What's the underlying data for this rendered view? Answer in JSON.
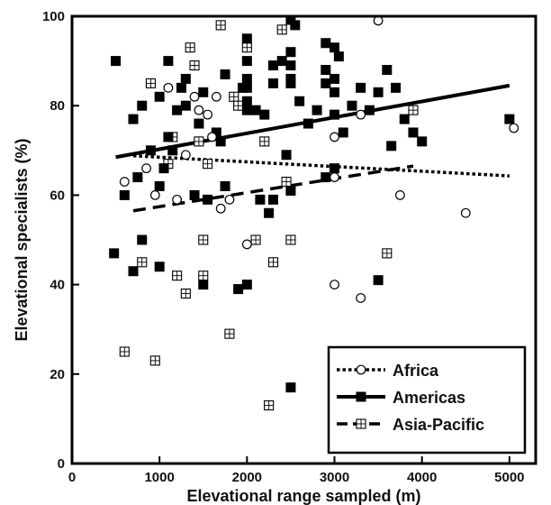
{
  "chart_data": {
    "type": "scatter",
    "title": "",
    "xlabel": "Elevational range sampled (m)",
    "ylabel": "Elevational specialists (%)",
    "xlim": [
      0,
      5300
    ],
    "ylim": [
      0,
      100
    ],
    "xticks": [
      0,
      1000,
      2000,
      3000,
      4000,
      5000
    ],
    "yticks": [
      0,
      20,
      40,
      60,
      80,
      100
    ],
    "grid": false,
    "legend_position": "bottom-right",
    "series": [
      {
        "name": "Africa",
        "marker": "open-circle",
        "line_style": "dotted",
        "color": "#000000",
        "points": [
          [
            600,
            63
          ],
          [
            850,
            66
          ],
          [
            950,
            60
          ],
          [
            1100,
            84
          ],
          [
            1200,
            59
          ],
          [
            1300,
            69
          ],
          [
            1400,
            82
          ],
          [
            1450,
            79
          ],
          [
            1550,
            78
          ],
          [
            1600,
            73
          ],
          [
            1650,
            82
          ],
          [
            1700,
            57
          ],
          [
            1800,
            59
          ],
          [
            2000,
            49
          ],
          [
            3000,
            40
          ],
          [
            3000,
            73
          ],
          [
            3000,
            64
          ],
          [
            3300,
            37
          ],
          [
            3300,
            78
          ],
          [
            3500,
            99
          ],
          [
            3750,
            60
          ],
          [
            4500,
            56
          ],
          [
            5050,
            75
          ]
        ],
        "trend": [
          [
            700,
            68.8
          ],
          [
            5000,
            64.3
          ]
        ]
      },
      {
        "name": "Americas",
        "marker": "filled-square",
        "line_style": "solid",
        "color": "#000000",
        "points": [
          [
            480,
            47
          ],
          [
            500,
            90
          ],
          [
            600,
            60
          ],
          [
            700,
            43
          ],
          [
            700,
            77
          ],
          [
            750,
            64
          ],
          [
            800,
            80
          ],
          [
            800,
            50
          ],
          [
            900,
            70
          ],
          [
            1000,
            44
          ],
          [
            1000,
            62
          ],
          [
            1000,
            82
          ],
          [
            1050,
            66
          ],
          [
            1100,
            73
          ],
          [
            1100,
            90
          ],
          [
            1150,
            70
          ],
          [
            1200,
            79
          ],
          [
            1250,
            84
          ],
          [
            1300,
            86
          ],
          [
            1300,
            80
          ],
          [
            1400,
            60
          ],
          [
            1450,
            76
          ],
          [
            1500,
            83
          ],
          [
            1500,
            40
          ],
          [
            1550,
            59
          ],
          [
            1650,
            74
          ],
          [
            1700,
            72
          ],
          [
            1750,
            62
          ],
          [
            1750,
            87
          ],
          [
            1900,
            39
          ],
          [
            1950,
            84
          ],
          [
            2000,
            95
          ],
          [
            2000,
            90
          ],
          [
            2000,
            86
          ],
          [
            2000,
            84
          ],
          [
            2000,
            81
          ],
          [
            2000,
            79
          ],
          [
            2000,
            40
          ],
          [
            2100,
            79
          ],
          [
            2150,
            59
          ],
          [
            2200,
            78
          ],
          [
            2250,
            56
          ],
          [
            2300,
            89
          ],
          [
            2300,
            85
          ],
          [
            2300,
            59
          ],
          [
            2400,
            90
          ],
          [
            2450,
            69
          ],
          [
            2500,
            100
          ],
          [
            2500,
            92
          ],
          [
            2500,
            89
          ],
          [
            2500,
            86
          ],
          [
            2500,
            85
          ],
          [
            2500,
            61
          ],
          [
            2500,
            17
          ],
          [
            2550,
            98
          ],
          [
            2600,
            81
          ],
          [
            2700,
            76
          ],
          [
            2800,
            79
          ],
          [
            2900,
            94
          ],
          [
            2900,
            88
          ],
          [
            2900,
            85
          ],
          [
            2900,
            64
          ],
          [
            3000,
            93
          ],
          [
            3000,
            86
          ],
          [
            3000,
            83
          ],
          [
            3000,
            78
          ],
          [
            3000,
            66
          ],
          [
            3050,
            91
          ],
          [
            3100,
            74
          ],
          [
            3200,
            80
          ],
          [
            3300,
            84
          ],
          [
            3400,
            79
          ],
          [
            3500,
            83
          ],
          [
            3500,
            41
          ],
          [
            3600,
            88
          ],
          [
            3650,
            71
          ],
          [
            3700,
            84
          ],
          [
            3800,
            77
          ],
          [
            3900,
            74
          ],
          [
            4000,
            72
          ],
          [
            5000,
            77
          ]
        ],
        "trend": [
          [
            500,
            68.5
          ],
          [
            5000,
            84.5
          ]
        ]
      },
      {
        "name": "Asia-Pacific",
        "marker": "crossed-square",
        "line_style": "dashed",
        "color": "#000000",
        "points": [
          [
            600,
            25
          ],
          [
            800,
            45
          ],
          [
            900,
            85
          ],
          [
            950,
            23
          ],
          [
            1100,
            67
          ],
          [
            1150,
            73
          ],
          [
            1200,
            42
          ],
          [
            1300,
            38
          ],
          [
            1350,
            93
          ],
          [
            1400,
            89
          ],
          [
            1450,
            72
          ],
          [
            1500,
            50
          ],
          [
            1500,
            42
          ],
          [
            1550,
            67
          ],
          [
            1700,
            98
          ],
          [
            1800,
            29
          ],
          [
            1850,
            82
          ],
          [
            1900,
            80
          ],
          [
            2000,
            93
          ],
          [
            2100,
            50
          ],
          [
            2200,
            72
          ],
          [
            2250,
            13
          ],
          [
            2300,
            45
          ],
          [
            2400,
            97
          ],
          [
            2450,
            63
          ],
          [
            2500,
            50
          ],
          [
            3600,
            47
          ],
          [
            3900,
            79
          ]
        ],
        "trend": [
          [
            700,
            56.5
          ],
          [
            3900,
            66.5
          ]
        ]
      }
    ]
  }
}
